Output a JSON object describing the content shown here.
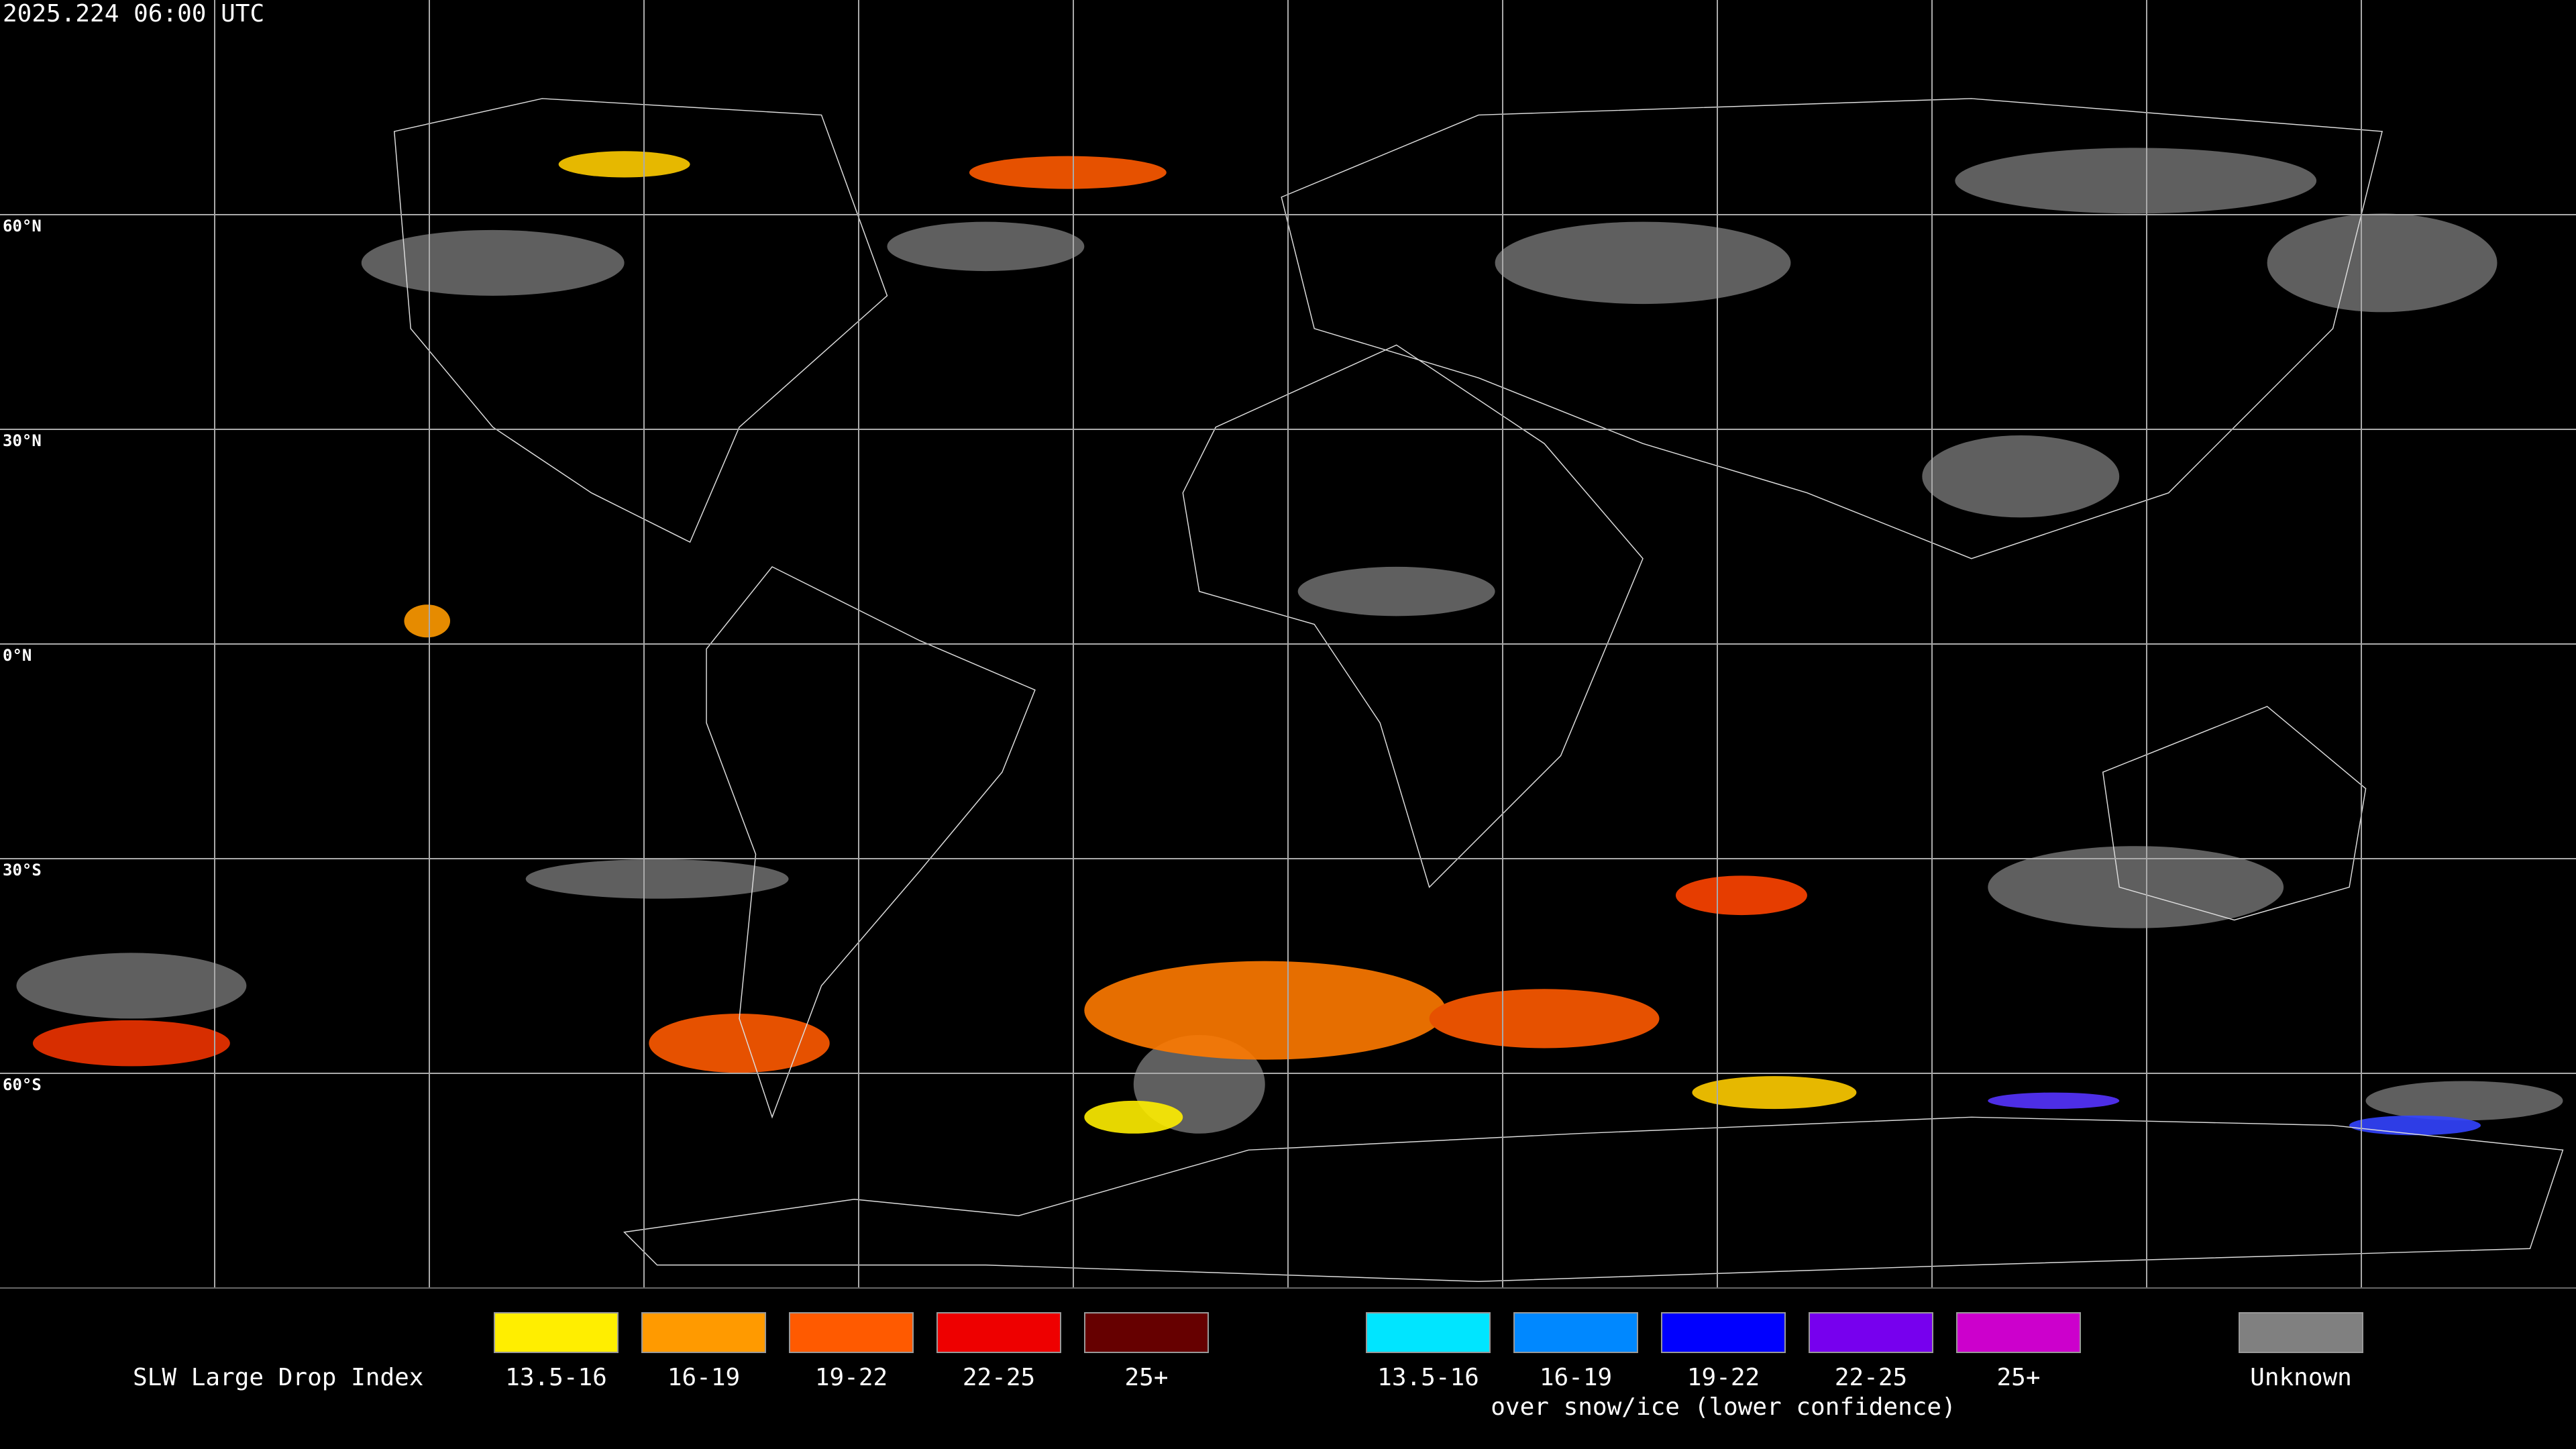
{
  "timestamp": "2025.224 06:00 UTC",
  "latitude_labels": [
    "60°N",
    "30°N",
    "0°N",
    "30°S",
    "60°S"
  ],
  "legend": {
    "title": "SLW Large Drop Index",
    "groups": [
      {
        "items": [
          {
            "label": "13.5-16",
            "color": "#ffee00"
          },
          {
            "label": "16-19",
            "color": "#ff9a00"
          },
          {
            "label": "19-22",
            "color": "#ff5a00"
          },
          {
            "label": "22-25",
            "color": "#ee0000"
          },
          {
            "label": "25+",
            "color": "#660000"
          }
        ]
      },
      {
        "items": [
          {
            "label": "13.5-16",
            "color": "#00e5ff"
          },
          {
            "label": "16-19",
            "color": "#0088ff"
          },
          {
            "label": "19-22",
            "color": "#0000ff"
          },
          {
            "label": "22-25",
            "color": "#7700ee"
          },
          {
            "label": "25+",
            "color": "#cc00cc"
          }
        ],
        "caption": "over snow/ice (lower confidence)"
      },
      {
        "items": [
          {
            "label": "Unknown",
            "color": "#808080"
          }
        ]
      }
    ]
  }
}
